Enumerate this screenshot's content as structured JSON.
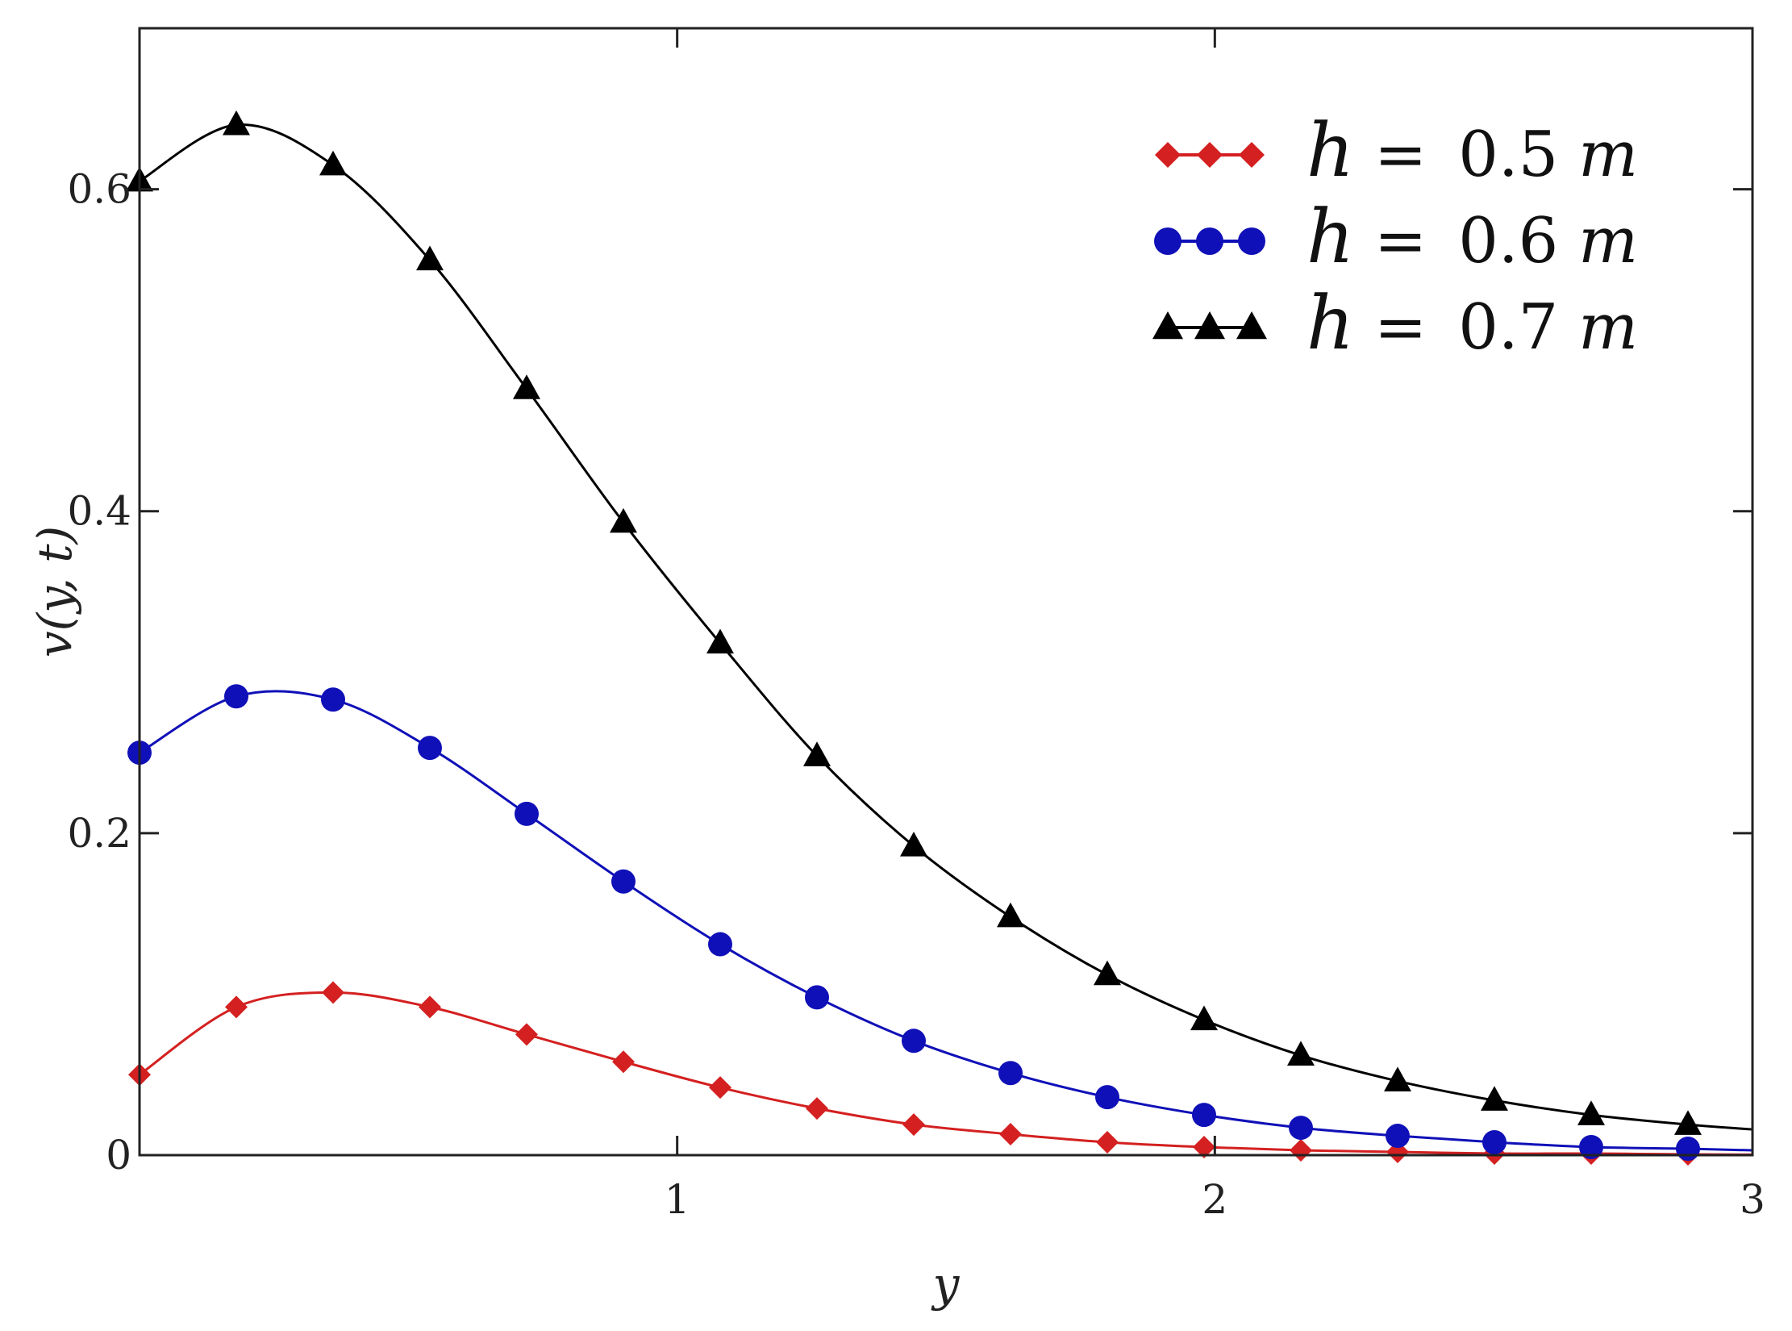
{
  "chart_data": {
    "type": "line",
    "xlabel": "y",
    "ylabel": "v(y, t)",
    "xlim": [
      0,
      3
    ],
    "ylim": [
      0,
      0.7
    ],
    "x_ticks": [
      {
        "value": 1,
        "label": "1"
      },
      {
        "value": 2,
        "label": "2"
      },
      {
        "value": 3,
        "label": "3"
      }
    ],
    "y_ticks": [
      {
        "value": 0,
        "label": "0"
      },
      {
        "value": 0.2,
        "label": "0.2"
      },
      {
        "value": 0.4,
        "label": "0.4"
      },
      {
        "value": 0.6,
        "label": "0.6"
      }
    ],
    "grid": false,
    "legend_position": "top-right",
    "x": [
      0,
      0.18,
      0.36,
      0.54,
      0.72,
      0.9,
      1.08,
      1.26,
      1.44,
      1.62,
      1.8,
      1.98,
      2.16,
      2.34,
      2.52,
      2.7,
      2.88,
      3.0
    ],
    "series": [
      {
        "name": "h = 0.5 m",
        "name_parts": {
          "var": "h",
          "eq": " = ",
          "num": "0.5 ",
          "unit": "m"
        },
        "color": "#d42020",
        "marker": "diamond",
        "values": [
          0.05,
          0.092,
          0.101,
          0.092,
          0.075,
          0.058,
          0.042,
          0.029,
          0.019,
          0.013,
          0.008,
          0.005,
          0.003,
          0.002,
          0.001,
          0.001,
          0.0005,
          0.0003
        ]
      },
      {
        "name": "h = 0.6 m",
        "name_parts": {
          "var": "h",
          "eq": " = ",
          "num": "0.6 ",
          "unit": "m"
        },
        "color": "#1010b8",
        "marker": "circle",
        "values": [
          0.25,
          0.285,
          0.283,
          0.253,
          0.212,
          0.17,
          0.131,
          0.098,
          0.071,
          0.051,
          0.036,
          0.025,
          0.017,
          0.012,
          0.008,
          0.005,
          0.004,
          0.003
        ]
      },
      {
        "name": "h = 0.7 m",
        "name_parts": {
          "var": "h",
          "eq": " = ",
          "num": "0.7 ",
          "unit": "m"
        },
        "color": "#000000",
        "marker": "triangle",
        "values": [
          0.605,
          0.64,
          0.615,
          0.556,
          0.476,
          0.393,
          0.318,
          0.248,
          0.192,
          0.148,
          0.112,
          0.084,
          0.062,
          0.046,
          0.034,
          0.025,
          0.019,
          0.016
        ]
      }
    ]
  }
}
